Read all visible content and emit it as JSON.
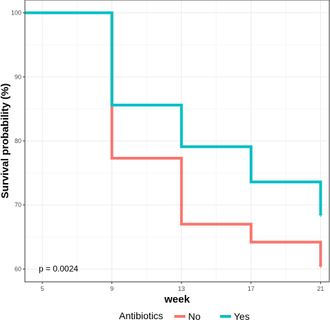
{
  "chart_data": {
    "type": "line",
    "style": "step",
    "xlabel": "week",
    "ylabel": "Survival probability (%)",
    "xlim": [
      4,
      21.5
    ],
    "ylim": [
      58,
      102
    ],
    "x_ticks": [
      5,
      9,
      13,
      17,
      21
    ],
    "y_ticks": [
      60,
      70,
      80,
      90,
      100
    ],
    "grid": true,
    "annotation": "p = 0.0024",
    "legend": {
      "title": "Antibiotics",
      "position": "bottom"
    },
    "series": [
      {
        "name": "No",
        "color": "#F8766D",
        "steps": [
          {
            "x": 4,
            "y": 100
          },
          {
            "x": 9,
            "y": 77.3
          },
          {
            "x": 13,
            "y": 67.0
          },
          {
            "x": 17,
            "y": 64.2
          },
          {
            "x": 21,
            "y": 60.5
          }
        ],
        "end_x": 21,
        "censor": {
          "x": 21,
          "y": 60.5
        }
      },
      {
        "name": "Yes",
        "color": "#00BFC4",
        "steps": [
          {
            "x": 4,
            "y": 100
          },
          {
            "x": 9,
            "y": 85.6
          },
          {
            "x": 13,
            "y": 79.1
          },
          {
            "x": 17,
            "y": 73.6
          },
          {
            "x": 21,
            "y": 68.5
          }
        ],
        "end_x": 21,
        "censor": {
          "x": 21,
          "y": 68.5
        }
      }
    ]
  }
}
